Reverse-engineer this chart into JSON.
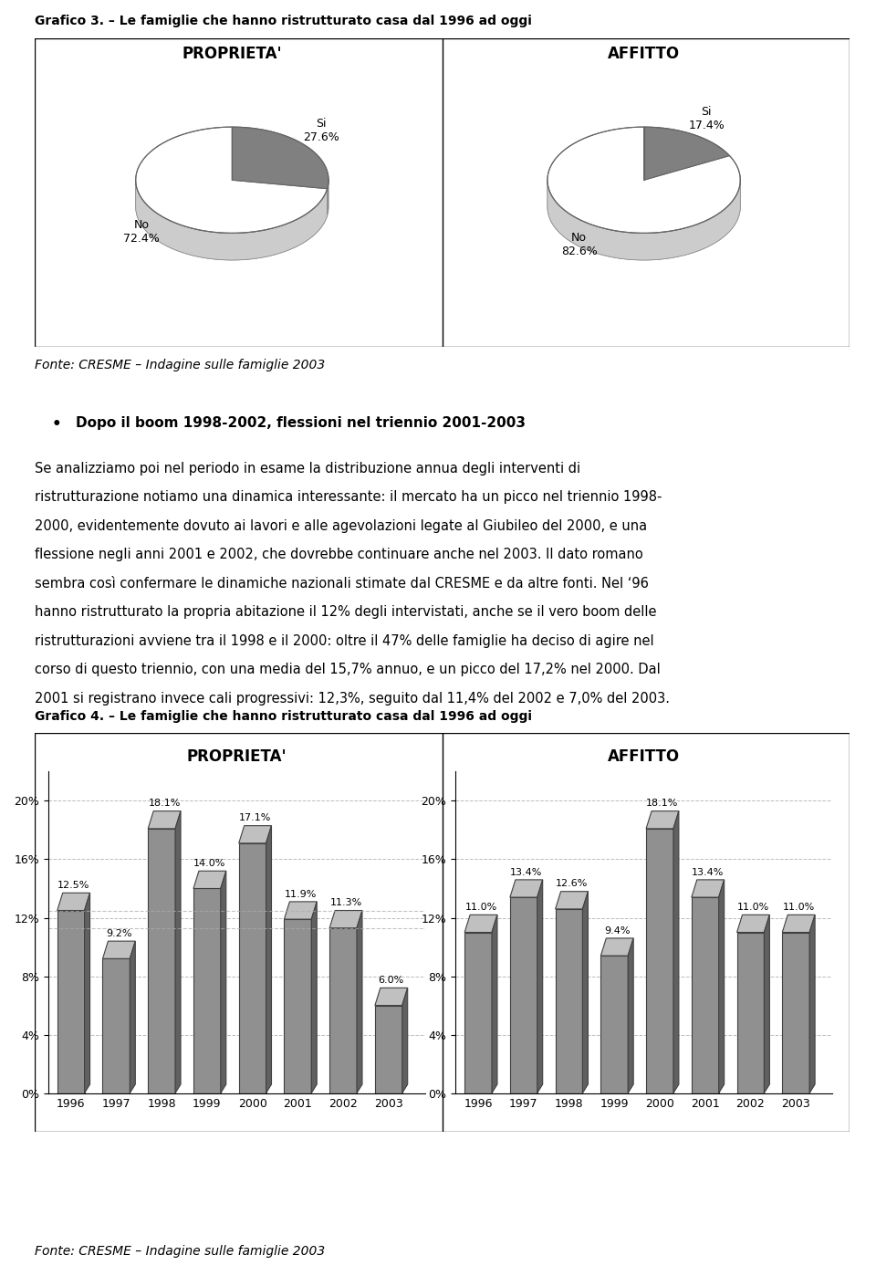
{
  "title3": "Grafico 3. – Le famiglie che hanno ristrutturato casa dal 1996 ad oggi",
  "title4": "Grafico 4. – Le famiglie che hanno ristrutturato casa dal 1996 ad oggi",
  "pie1_title": "PROPRIETA'",
  "pie2_title": "AFFITTO",
  "pie1_si": 27.6,
  "pie1_no": 72.4,
  "pie2_si": 17.4,
  "pie2_no": 82.6,
  "pie_si_color": "#808080",
  "pie_no_color": "#ffffff",
  "fonte": "Fonte: CRESME – Indagine sulle famiglie 2003",
  "bullet_title": "Dopo il boom 1998-2002, flessioni nel triennio 2001-2003",
  "body_text": "Se analizziamo poi nel periodo in esame la distribuzione annua degli interventi di ristrutturazione notiamo una dinamica interessante: il mercato ha un picco nel triennio 1998-2000, evidentemente dovuto ai lavori e alle agevolazioni legate al Giubileo del 2000, e una flessione negli anni 2001 e 2002, che dovrebbe continuare anche nel 2003. Il dato romano sembra così confermare le dinamiche nazionali stimate dal CRESME e da altre fonti. Nel ‘96 hanno ristrutturato la propria abitazione il 12% degli intervistati, anche se il vero boom delle ristrutturazioni avviene tra il 1998 e il 2000: oltre il 47% delle famiglie ha deciso di agire nel corso di questo triennio, con una media del 15,7% annuo, e un picco del 17,2% nel 2000. Dal 2001 si registrano invece cali progressivi: 12,3%, seguito dal 11,4% del 2002 e 7,0% del 2003.",
  "years": [
    "1996",
    "1997",
    "1998",
    "1999",
    "2000",
    "2001",
    "2002",
    "2003"
  ],
  "prop_values": [
    12.5,
    9.2,
    18.1,
    14.0,
    17.1,
    11.9,
    11.3,
    6.0
  ],
  "affi_values": [
    11.0,
    13.4,
    12.6,
    9.4,
    18.1,
    13.4,
    11.0,
    11.0
  ],
  "bar_color": "#909090",
  "bar_edge_color": "#404040",
  "bar_dark_color": "#606060",
  "yticks": [
    0,
    4,
    8,
    12,
    16,
    20
  ],
  "ylabels": [
    "0%",
    "4%",
    "8%",
    "12%",
    "16%",
    "20%"
  ],
  "grid_color": "#aaaaaa",
  "background_color": "#ffffff",
  "box_color": "#000000",
  "title_fontsize": 10,
  "subtitle_fontsize": 11,
  "label_fontsize": 9,
  "bar_label_fontsize": 8,
  "body_fontsize": 10.5,
  "fonte_fontsize": 10
}
